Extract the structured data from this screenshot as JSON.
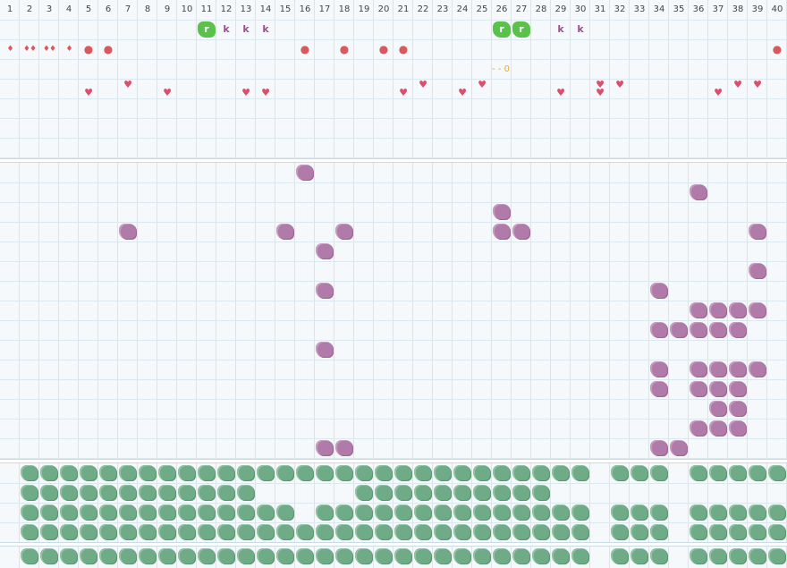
{
  "columns": [
    "1",
    "2",
    "3",
    "4",
    "5",
    "6",
    "7",
    "8",
    "9",
    "10",
    "11",
    "12",
    "13",
    "14",
    "15",
    "16",
    "17",
    "18",
    "19",
    "20",
    "21",
    "22",
    "23",
    "24",
    "25",
    "26",
    "27",
    "28",
    "29",
    "30",
    "31",
    "32",
    "33",
    "34",
    "35",
    "36",
    "37",
    "38",
    "39",
    "40"
  ],
  "marker_label": "- - 0",
  "colors": {
    "purple": "#b07aa9",
    "green": "#6eab86",
    "lime": "#5ac24a",
    "heart": "#dc4f6a"
  },
  "top_row_items": [
    {
      "col": 11,
      "kind": "lime",
      "glyph": "r"
    },
    {
      "col": 12,
      "kind": "k",
      "glyph": "k"
    },
    {
      "col": 13,
      "kind": "k",
      "glyph": "k"
    },
    {
      "col": 14,
      "kind": "k",
      "glyph": "k"
    },
    {
      "col": 26,
      "kind": "lime",
      "glyph": "r"
    },
    {
      "col": 27,
      "kind": "lime",
      "glyph": "r"
    },
    {
      "col": 29,
      "kind": "k",
      "glyph": "k"
    },
    {
      "col": 30,
      "kind": "k",
      "glyph": "k"
    }
  ],
  "row2_items": [
    {
      "col": 1,
      "kind": "drop",
      "glyph": "♦"
    },
    {
      "col": 2,
      "kind": "drop",
      "glyph": "♦♦"
    },
    {
      "col": 3,
      "kind": "drop",
      "glyph": "♦♦"
    },
    {
      "col": 4,
      "kind": "drop",
      "glyph": "♦"
    },
    {
      "col": 5,
      "kind": "dot",
      "glyph": "●"
    },
    {
      "col": 6,
      "kind": "dot",
      "glyph": "●"
    },
    {
      "col": 16,
      "kind": "dot",
      "glyph": "●"
    },
    {
      "col": 18,
      "kind": "dot",
      "glyph": "●"
    },
    {
      "col": 20,
      "kind": "dot",
      "glyph": "●"
    },
    {
      "col": 21,
      "kind": "dot",
      "glyph": "●"
    },
    {
      "col": 40,
      "kind": "dot",
      "glyph": "●"
    }
  ],
  "hearts": [
    {
      "col": 5,
      "row": "low"
    },
    {
      "col": 7,
      "row": "high"
    },
    {
      "col": 9,
      "row": "low"
    },
    {
      "col": 13,
      "row": "low"
    },
    {
      "col": 14,
      "row": "low"
    },
    {
      "col": 21,
      "row": "low"
    },
    {
      "col": 22,
      "row": "high"
    },
    {
      "col": 24,
      "row": "low"
    },
    {
      "col": 25,
      "row": "high"
    },
    {
      "col": 29,
      "row": "low"
    },
    {
      "col": 31,
      "row": "high"
    },
    {
      "col": 31,
      "row": "low"
    },
    {
      "col": 32,
      "row": "high"
    },
    {
      "col": 37,
      "row": "low"
    },
    {
      "col": 38,
      "row": "high"
    },
    {
      "col": 39,
      "row": "high"
    }
  ],
  "purple_cells": [
    [
      16,
      0
    ],
    [
      36,
      1
    ],
    [
      26,
      2
    ],
    [
      7,
      3
    ],
    [
      15,
      3
    ],
    [
      18,
      3
    ],
    [
      26,
      3
    ],
    [
      27,
      3
    ],
    [
      39,
      3
    ],
    [
      17,
      4
    ],
    [
      39,
      5
    ],
    [
      17,
      6
    ],
    [
      34,
      6
    ],
    [
      36,
      7
    ],
    [
      37,
      7
    ],
    [
      38,
      7
    ],
    [
      39,
      7
    ],
    [
      34,
      8
    ],
    [
      35,
      8
    ],
    [
      36,
      8
    ],
    [
      37,
      8
    ],
    [
      38,
      8
    ],
    [
      17,
      9
    ],
    [
      34,
      10
    ],
    [
      36,
      10
    ],
    [
      37,
      10
    ],
    [
      38,
      10
    ],
    [
      39,
      10
    ],
    [
      34,
      11
    ],
    [
      36,
      11
    ],
    [
      37,
      11
    ],
    [
      38,
      11
    ],
    [
      37,
      12
    ],
    [
      38,
      12
    ],
    [
      36,
      13
    ],
    [
      37,
      13
    ],
    [
      38,
      13
    ],
    [
      17,
      14
    ],
    [
      18,
      14
    ],
    [
      34,
      14
    ],
    [
      35,
      14
    ]
  ],
  "green_rows": [
    {
      "ranges": [
        [
          2,
          30
        ],
        [
          32,
          34
        ],
        [
          36,
          40
        ]
      ]
    },
    {
      "ranges": [
        [
          2,
          13
        ],
        [
          19,
          28
        ]
      ]
    },
    {
      "ranges": [
        [
          2,
          15
        ],
        [
          17,
          30
        ],
        [
          32,
          34
        ],
        [
          36,
          40
        ]
      ]
    },
    {
      "ranges": [
        [
          2,
          30
        ],
        [
          32,
          34
        ],
        [
          36,
          40
        ]
      ]
    },
    {
      "ranges": [
        [
          2,
          30
        ],
        [
          32,
          34
        ],
        [
          36,
          40
        ]
      ]
    }
  ]
}
